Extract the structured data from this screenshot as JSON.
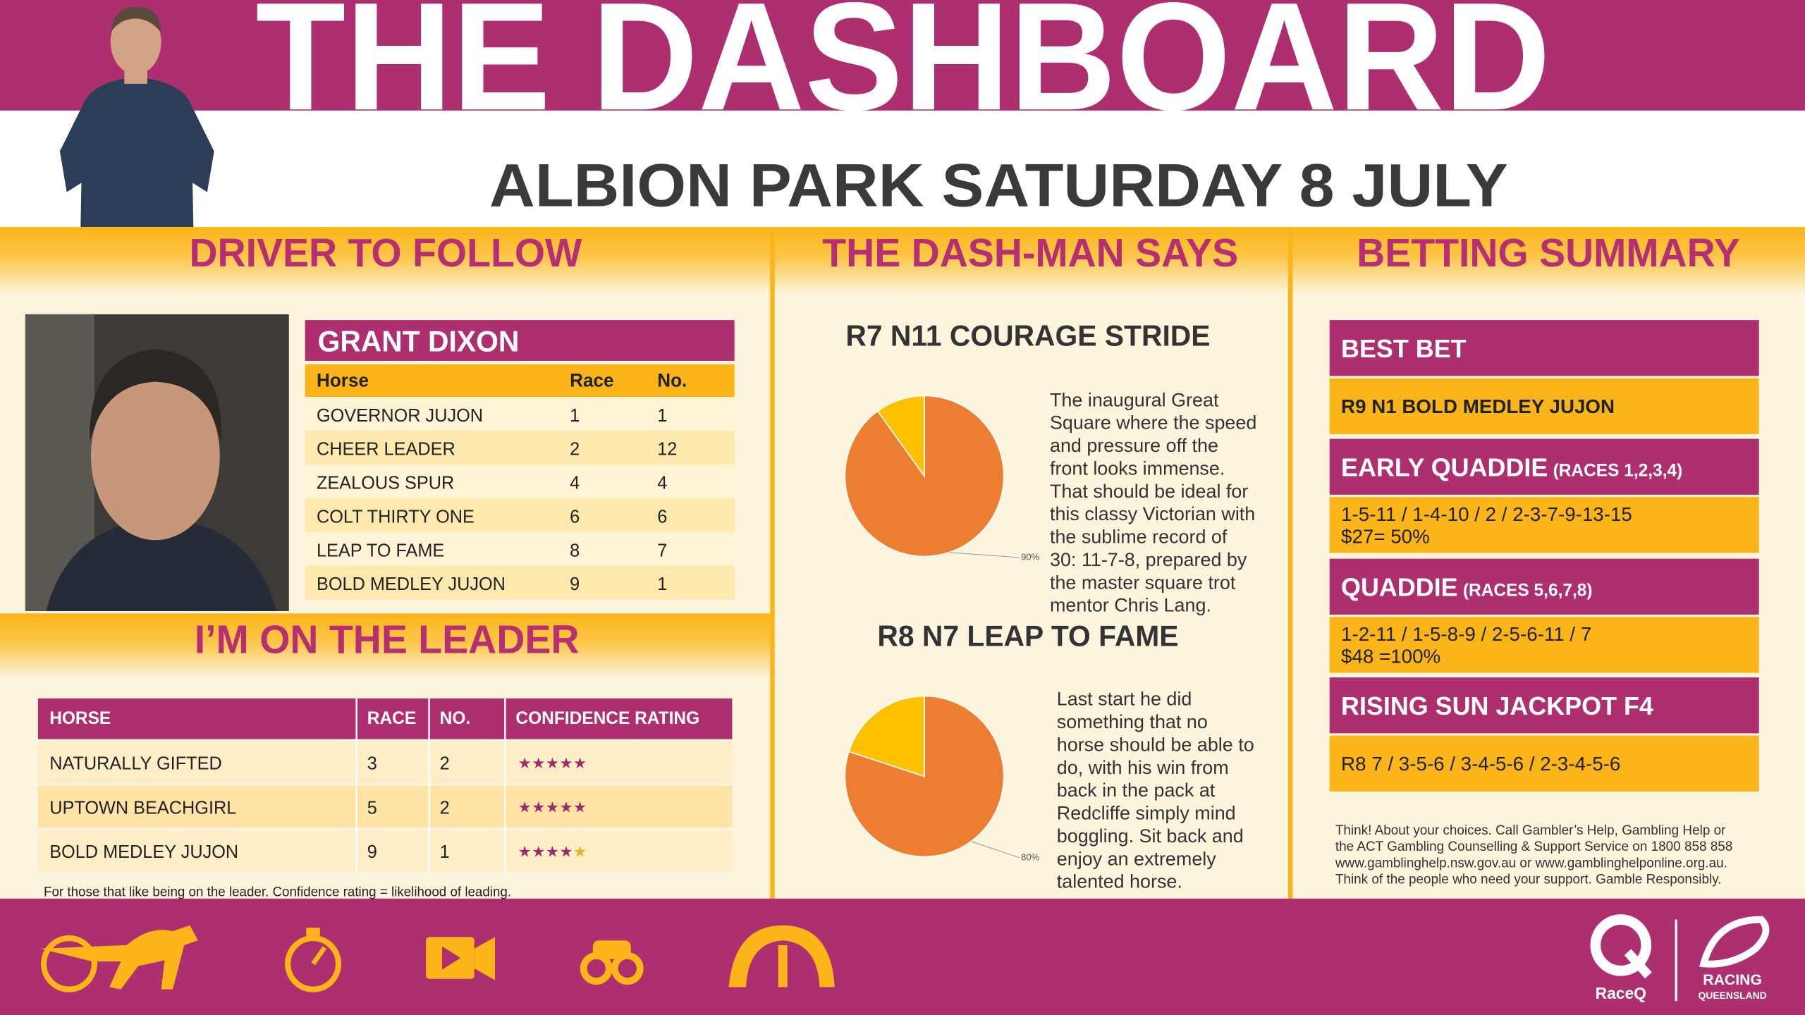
{
  "header": {
    "title": "THE DASHBOARD",
    "subtitle": "ALBION PARK SATURDAY 8 JULY"
  },
  "driver_to_follow": {
    "heading": "DRIVER TO FOLLOW",
    "driver": "GRANT DIXON",
    "table": {
      "columns": [
        "Horse",
        "Race",
        "No."
      ],
      "rows": [
        [
          "GOVERNOR JUJON",
          1,
          1
        ],
        [
          "CHEER LEADER",
          2,
          12
        ],
        [
          "ZEALOUS SPUR",
          4,
          4
        ],
        [
          "COLT THIRTY ONE",
          6,
          6
        ],
        [
          "LEAP TO FAME",
          8,
          7
        ],
        [
          "BOLD MEDLEY JUJON",
          9,
          1
        ]
      ]
    }
  },
  "on_the_leader": {
    "heading": "I’M ON THE LEADER",
    "table": {
      "columns": [
        "HORSE",
        "RACE",
        "NO.",
        "CONFIDENCE RATING"
      ],
      "rows": [
        [
          "NATURALLY GIFTED",
          3,
          2,
          5
        ],
        [
          "UPTOWN BEACHGIRL",
          5,
          2,
          5
        ],
        [
          "BOLD MEDLEY JUJON",
          9,
          1,
          4
        ]
      ]
    },
    "rating_max": 5,
    "footnote": "For those that like being on the leader.  Confidence rating = likelihood of leading."
  },
  "dash_man_says": {
    "heading": "THE DASH-MAN SAYS",
    "tips": [
      {
        "title": "R7 N11 COURAGE STRIDE",
        "lines": [
          "The inaugural Great",
          "Square where the speed",
          "and pressure off the",
          "front looks immense.",
          "That should be ideal for",
          "this classy Victorian with",
          "the sublime record of",
          "30: 11-7-8, prepared by",
          "the master square trot",
          "mentor Chris Lang."
        ]
      },
      {
        "title": "R8 N7 LEAP TO FAME",
        "lines": [
          "Last start he did",
          "something that no",
          "horse should be able to",
          "do, with his win from",
          "back in the pack at",
          "Redcliffe simply mind",
          "boggling. Sit back and",
          "enjoy an extremely",
          "talented horse."
        ]
      }
    ]
  },
  "chart_data": [
    {
      "type": "pie",
      "values": [
        90,
        10
      ],
      "value_labels": [
        "90%",
        null
      ],
      "colors": [
        "#ed7d31",
        "#ffc000"
      ]
    },
    {
      "type": "pie",
      "values": [
        80,
        20
      ],
      "value_labels": [
        "80%",
        null
      ],
      "colors": [
        "#ed7d31",
        "#ffc000"
      ]
    }
  ],
  "betting_summary": {
    "heading": "BETTING SUMMARY",
    "bets": [
      {
        "title": "BEST BET",
        "lines": [
          "R9 N1 BOLD MEDLEY JUJON"
        ]
      },
      {
        "title": "EARLY QUADDIE",
        "note": "(RACES 1,2,3,4)",
        "lines": [
          "1-5-11 / 1-4-10 / 2 / 2-3-7-9-13-15",
          "$27= 50%"
        ]
      },
      {
        "title": "QUADDIE",
        "note": "(RACES 5,6,7,8)",
        "lines": [
          "1-2-11 / 1-5-8-9 / 2-5-6-11 / 7",
          "$48 =100%"
        ]
      },
      {
        "title": "RISING SUN JACKPOT F4",
        "lines": [
          "R8 7 / 3-5-6 / 3-4-5-6 / 2-3-4-5-6"
        ]
      }
    ],
    "disclaimer": [
      "Think! About your choices. Call Gambler’s Help, Gambling Help or",
      "the ACT Gambling Counselling & Support Service on 1800 858 858",
      "www.gamblinghelp.nsw.gov.au or www.gamblinghelponline.org.au.",
      "Think of the people who need your support. Gamble Responsibly."
    ]
  },
  "logos": {
    "raceq": "RaceQ",
    "racing": "RACING",
    "queensland": "QUEENSLAND"
  }
}
